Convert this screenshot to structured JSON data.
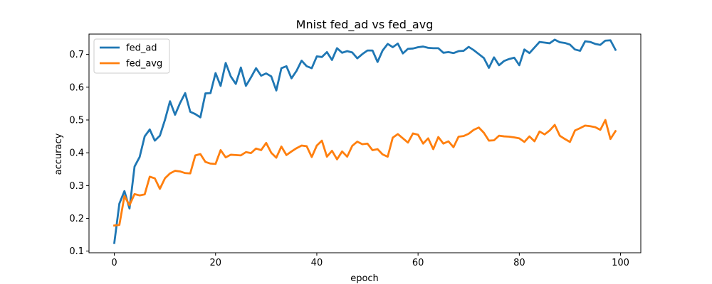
{
  "chart_data": {
    "type": "line",
    "title": "Mnist fed_ad vs fed_avg",
    "xlabel": "epoch",
    "ylabel": "accuracy",
    "xlim": [
      -5,
      104
    ],
    "ylim": [
      0.095,
      0.762
    ],
    "xticks": [
      0,
      20,
      40,
      60,
      80,
      100
    ],
    "yticks": [
      0.1,
      0.2,
      0.3,
      0.4,
      0.5,
      0.6,
      0.7
    ],
    "xtick_labels": [
      "0",
      "20",
      "40",
      "60",
      "80",
      "100"
    ],
    "ytick_labels": [
      "0.1",
      "0.2",
      "0.3",
      "0.4",
      "0.5",
      "0.6",
      "0.7"
    ],
    "grid": false,
    "legend_position": "top-left",
    "x": [
      0,
      1,
      2,
      3,
      4,
      5,
      6,
      7,
      8,
      9,
      10,
      11,
      12,
      13,
      14,
      15,
      16,
      17,
      18,
      19,
      20,
      21,
      22,
      23,
      24,
      25,
      26,
      27,
      28,
      29,
      30,
      31,
      32,
      33,
      34,
      35,
      36,
      37,
      38,
      39,
      40,
      41,
      42,
      43,
      44,
      45,
      46,
      47,
      48,
      49,
      50,
      51,
      52,
      53,
      54,
      55,
      56,
      57,
      58,
      59,
      60,
      61,
      62,
      63,
      64,
      65,
      66,
      67,
      68,
      69,
      70,
      71,
      72,
      73,
      74,
      75,
      76,
      77,
      78,
      79,
      80,
      81,
      82,
      83,
      84,
      85,
      86,
      87,
      88,
      89,
      90,
      91,
      92,
      93,
      94,
      95,
      96,
      97,
      98,
      99
    ],
    "series": [
      {
        "name": "fed_ad",
        "color": "#1f77b4",
        "values": [
          0.125,
          0.245,
          0.283,
          0.23,
          0.358,
          0.387,
          0.45,
          0.471,
          0.437,
          0.452,
          0.5,
          0.557,
          0.516,
          0.552,
          0.582,
          0.525,
          0.518,
          0.508,
          0.581,
          0.582,
          0.643,
          0.604,
          0.674,
          0.633,
          0.61,
          0.66,
          0.604,
          0.63,
          0.658,
          0.635,
          0.642,
          0.633,
          0.59,
          0.658,
          0.664,
          0.627,
          0.65,
          0.681,
          0.664,
          0.658,
          0.694,
          0.692,
          0.707,
          0.683,
          0.719,
          0.705,
          0.71,
          0.706,
          0.688,
          0.701,
          0.712,
          0.712,
          0.677,
          0.712,
          0.732,
          0.722,
          0.733,
          0.703,
          0.717,
          0.718,
          0.722,
          0.724,
          0.72,
          0.719,
          0.719,
          0.705,
          0.707,
          0.704,
          0.71,
          0.711,
          0.723,
          0.713,
          0.701,
          0.689,
          0.659,
          0.691,
          0.667,
          0.68,
          0.686,
          0.69,
          0.667,
          0.715,
          0.704,
          0.721,
          0.738,
          0.736,
          0.734,
          0.745,
          0.737,
          0.735,
          0.73,
          0.715,
          0.711,
          0.74,
          0.738,
          0.732,
          0.729,
          0.742,
          0.743,
          0.714
        ]
      },
      {
        "name": "fed_avg",
        "color": "#ff7f0e",
        "values": [
          0.178,
          0.18,
          0.268,
          0.24,
          0.274,
          0.27,
          0.273,
          0.327,
          0.322,
          0.29,
          0.322,
          0.337,
          0.345,
          0.343,
          0.338,
          0.337,
          0.392,
          0.396,
          0.372,
          0.367,
          0.366,
          0.408,
          0.386,
          0.394,
          0.393,
          0.392,
          0.402,
          0.399,
          0.413,
          0.408,
          0.43,
          0.4,
          0.385,
          0.419,
          0.393,
          0.404,
          0.414,
          0.422,
          0.42,
          0.387,
          0.422,
          0.437,
          0.388,
          0.406,
          0.38,
          0.404,
          0.388,
          0.421,
          0.434,
          0.426,
          0.428,
          0.408,
          0.411,
          0.395,
          0.388,
          0.446,
          0.457,
          0.444,
          0.431,
          0.459,
          0.455,
          0.428,
          0.444,
          0.411,
          0.448,
          0.428,
          0.435,
          0.417,
          0.449,
          0.451,
          0.458,
          0.47,
          0.477,
          0.461,
          0.437,
          0.438,
          0.452,
          0.45,
          0.449,
          0.447,
          0.444,
          0.433,
          0.45,
          0.435,
          0.465,
          0.456,
          0.468,
          0.485,
          0.452,
          0.442,
          0.433,
          0.468,
          0.475,
          0.483,
          0.481,
          0.478,
          0.47,
          0.5,
          0.442,
          0.466
        ]
      }
    ]
  }
}
